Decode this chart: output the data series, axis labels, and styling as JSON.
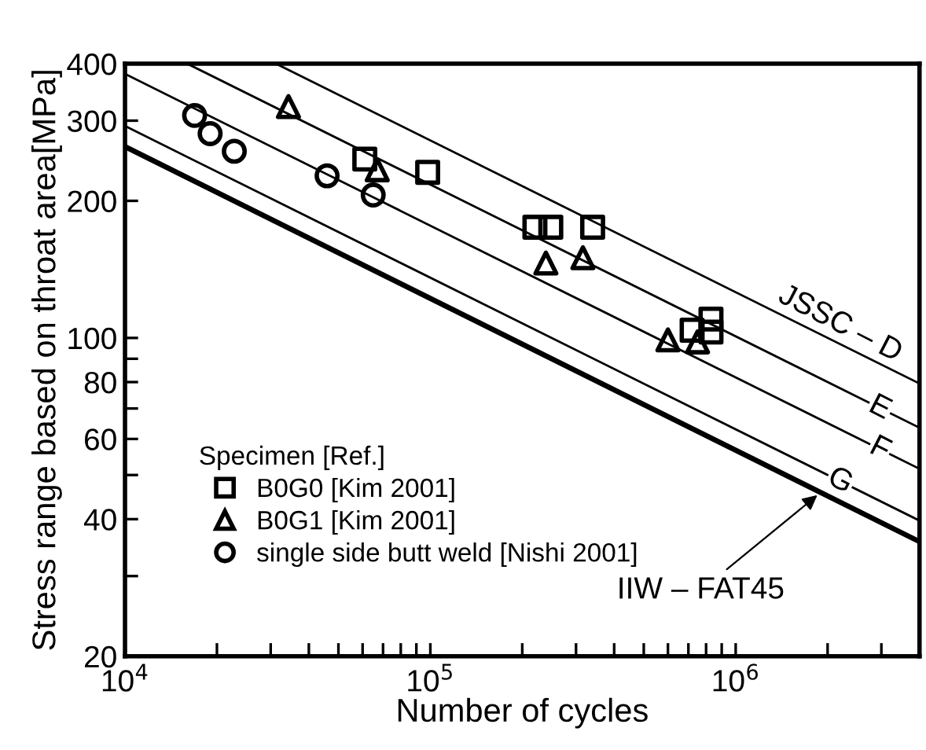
{
  "chart_data": {
    "type": "scatter",
    "xlabel": "Number of cycles",
    "ylabel": "Stress range based on throat area[MPa]",
    "legend_title": "Specimen [Ref.]",
    "log": "xy",
    "xlim": [
      10000,
      4000000
    ],
    "ylim": [
      20,
      400
    ],
    "xticks": [
      {
        "value": 10000,
        "label": "10$^{4}$"
      },
      {
        "value": 20000,
        "label": null
      },
      {
        "value": 30000,
        "label": null
      },
      {
        "value": 40000,
        "label": null
      },
      {
        "value": 50000,
        "label": null
      },
      {
        "value": 60000,
        "label": null
      },
      {
        "value": 70000,
        "label": null
      },
      {
        "value": 80000,
        "label": null
      },
      {
        "value": 90000,
        "label": null
      },
      {
        "value": 100000,
        "label": "10$^{5}$"
      },
      {
        "value": 200000,
        "label": null
      },
      {
        "value": 300000,
        "label": null
      },
      {
        "value": 400000,
        "label": null
      },
      {
        "value": 500000,
        "label": null
      },
      {
        "value": 600000,
        "label": null
      },
      {
        "value": 700000,
        "label": null
      },
      {
        "value": 800000,
        "label": null
      },
      {
        "value": 900000,
        "label": null
      },
      {
        "value": 1000000,
        "label": "10$^{6}$"
      },
      {
        "value": 2000000,
        "label": null
      },
      {
        "value": 3000000,
        "label": null
      }
    ],
    "yticks": [
      20,
      {
        "value": 30,
        "label": null
      },
      40,
      {
        "value": 50,
        "label": null
      },
      60,
      {
        "value": 70,
        "label": null
      },
      80,
      {
        "value": 90,
        "label": null
      },
      100,
      200,
      300,
      400
    ],
    "grid": false,
    "legend": "bottom left",
    "series": [
      {
        "name": "B0G0 [Kim 2001]",
        "marker": "square",
        "color": "#000000",
        "x": [
          61000,
          98000,
          220000,
          248000,
          340000,
          720000,
          830000,
          830000
        ],
        "values": [
          247,
          231,
          175,
          175,
          175,
          104,
          110,
          103
        ]
      },
      {
        "name": "B0G1 [Kim 2001]",
        "marker": "triangle",
        "color": "#000000",
        "x": [
          34300,
          67000,
          239000,
          316000,
          600000,
          750000
        ],
        "values": [
          322,
          234,
          146,
          150,
          99,
          98
        ]
      },
      {
        "name": "single side butt weld [Nishi 2001]",
        "marker": "circle",
        "color": "#000000",
        "x": [
          16900,
          19000,
          22800,
          45900,
          65000
        ],
        "values": [
          308,
          281,
          257,
          227,
          206
        ]
      },
      {
        "type": "line",
        "marker": "none",
        "line_style": "solid",
        "color": "#000000",
        "x": [
          31250,
          4000000
        ],
        "values": [
          400,
          79.4
        ]
      },
      {
        "type": "line",
        "marker": "none",
        "line_style": "solid",
        "color": "#000000",
        "x": [
          16000,
          4000000
        ],
        "values": [
          400,
          63.5
        ]
      },
      {
        "type": "line",
        "marker": "none",
        "line_style": "solid",
        "color": "#000000",
        "x": [
          10000,
          4000000
        ],
        "values": [
          380,
          51.6
        ]
      },
      {
        "type": "line",
        "marker": "none",
        "line_style": "solid",
        "color": "#000000",
        "x": [
          10000,
          4000000
        ],
        "values": [
          292,
          39.7
        ]
      },
      {
        "type": "line",
        "marker": "none",
        "line_style": "solid",
        "color": "#000000",
        "x": [
          10000,
          4000000
        ],
        "values": [
          263,
          35.7
        ]
      }
    ],
    "annotations": [
      "JSSC – D",
      "E",
      "F",
      "G",
      {
        "text": "IIW – FAT45",
        "x": 1900000,
        "y": 45.8
      }
    ]
  }
}
